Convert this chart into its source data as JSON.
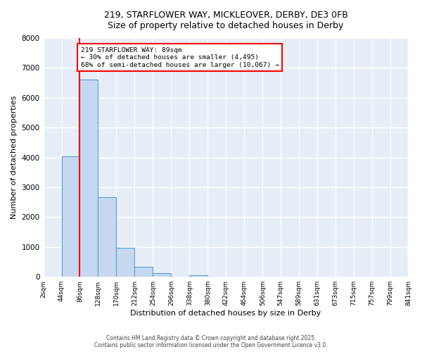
{
  "title_line1": "219, STARFLOWER WAY, MICKLEOVER, DERBY, DE3 0FB",
  "title_line2": "Size of property relative to detached houses in Derby",
  "xlabel": "Distribution of detached houses by size in Derby",
  "ylabel": "Number of detached properties",
  "bar_values": [
    0,
    4050,
    6600,
    2680,
    975,
    330,
    130,
    0,
    60,
    0,
    0,
    0,
    0,
    0,
    0,
    0,
    0,
    0,
    0,
    0
  ],
  "bin_labels": [
    "2sqm",
    "44sqm",
    "86sqm",
    "128sqm",
    "170sqm",
    "212sqm",
    "254sqm",
    "296sqm",
    "338sqm",
    "380sqm",
    "422sqm",
    "464sqm",
    "506sqm",
    "547sqm",
    "589sqm",
    "631sqm",
    "673sqm",
    "715sqm",
    "757sqm",
    "799sqm",
    "841sqm"
  ],
  "bin_edges": [
    2,
    44,
    86,
    128,
    170,
    212,
    254,
    296,
    338,
    380,
    422,
    464,
    506,
    547,
    589,
    631,
    673,
    715,
    757,
    799,
    841
  ],
  "bar_color": "#c5d8f0",
  "bar_edge_color": "#5a9fd4",
  "vline_x": 86,
  "vline_color": "red",
  "annotation_text": "219 STARFLOWER WAY: 89sqm\n← 30% of detached houses are smaller (4,495)\n68% of semi-detached houses are larger (10,067) →",
  "annotation_box_color": "white",
  "annotation_box_edge": "red",
  "ylim": [
    0,
    8000
  ],
  "yticks": [
    0,
    1000,
    2000,
    3000,
    4000,
    5000,
    6000,
    7000,
    8000
  ],
  "bg_color": "#e8eef8",
  "grid_color": "white",
  "footer_line1": "Contains HM Land Registry data © Crown copyright and database right 2025.",
  "footer_line2": "Contains public sector information licensed under the Open Government Licence v3.0."
}
